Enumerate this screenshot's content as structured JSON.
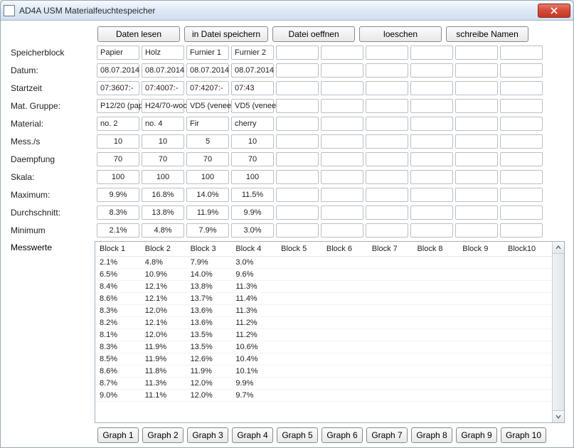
{
  "window": {
    "title": "AD4A USM Materialfeuchtespeicher"
  },
  "toolbar": {
    "read": "Daten lesen",
    "save_file": "in Datei speichern",
    "open_file": "Datei oeffnen",
    "delete": "loeschen",
    "write_names": "schreibe Namen"
  },
  "labels": {
    "speicherblock": "Speicherblock",
    "datum": "Datum:",
    "startzeit": "Startzeit",
    "mat_gruppe": "Mat. Gruppe:",
    "material": "Material:",
    "mess_s": "Mess./s",
    "daempfung": "Daempfung",
    "skala": "Skala:",
    "maximum": "Maximum:",
    "durchschnitt": "Durchschnitt:",
    "minimum": "Minimum",
    "messwerte": "Messwerte"
  },
  "columns": {
    "speicherblock": [
      "Papier",
      "Holz",
      "Furnier 1",
      "Furnier 2",
      "",
      "",
      "",
      "",
      "",
      ""
    ],
    "datum": [
      "08.07.2014",
      "08.07.2014",
      "08.07.2014",
      "08.07.2014",
      "",
      "",
      "",
      "",
      "",
      ""
    ],
    "startzeit": [
      "07:3607:-",
      "07:4007:-",
      "07:4207:-",
      "07:43",
      "",
      "",
      "",
      "",
      "",
      ""
    ],
    "mat_gruppe": [
      "P12/20 (pap",
      "H24/70-woo",
      "VD5 (veneer",
      "VD5 (veneer",
      "",
      "",
      "",
      "",
      "",
      ""
    ],
    "material": [
      "no. 2",
      "no. 4",
      "Fir",
      "cherry",
      "",
      "",
      "",
      "",
      "",
      ""
    ],
    "mess_s": [
      "10",
      "10",
      "5",
      "10",
      "",
      "",
      "",
      "",
      "",
      ""
    ],
    "daempfung": [
      "70",
      "70",
      "70",
      "70",
      "",
      "",
      "",
      "",
      "",
      ""
    ],
    "skala": [
      "100",
      "100",
      "100",
      "100",
      "",
      "",
      "",
      "",
      "",
      ""
    ],
    "maximum": [
      "9.9%",
      "16.8%",
      "14.0%",
      "11.5%",
      "",
      "",
      "",
      "",
      "",
      ""
    ],
    "durchschnitt": [
      "8.3%",
      "13.8%",
      "11.9%",
      "9.9%",
      "",
      "",
      "",
      "",
      "",
      ""
    ],
    "minimum": [
      "2.1%",
      "4.8%",
      "7.9%",
      "3.0%",
      "",
      "",
      "",
      "",
      "",
      ""
    ]
  },
  "messwerte": {
    "headers": [
      "Block 1",
      "Block 2",
      "Block 3",
      "Block 4",
      "Block 5",
      "Block 6",
      "Block 7",
      "Block 8",
      "Block 9",
      "Block10"
    ],
    "rows": [
      [
        "2.1%",
        "4.8%",
        "7.9%",
        "3.0%",
        "",
        "",
        "",
        "",
        "",
        ""
      ],
      [
        "6.5%",
        "10.9%",
        "14.0%",
        "9.6%",
        "",
        "",
        "",
        "",
        "",
        ""
      ],
      [
        "8.4%",
        "12.1%",
        "13.8%",
        "11.3%",
        "",
        "",
        "",
        "",
        "",
        ""
      ],
      [
        "8.6%",
        "12.1%",
        "13.7%",
        "11.4%",
        "",
        "",
        "",
        "",
        "",
        ""
      ],
      [
        "8.3%",
        "12.0%",
        "13.6%",
        "11.3%",
        "",
        "",
        "",
        "",
        "",
        ""
      ],
      [
        "8.2%",
        "12.1%",
        "13.6%",
        "11.2%",
        "",
        "",
        "",
        "",
        "",
        ""
      ],
      [
        "8.1%",
        "12.0%",
        "13.5%",
        "11.2%",
        "",
        "",
        "",
        "",
        "",
        ""
      ],
      [
        "8.3%",
        "11.9%",
        "13.5%",
        "10.6%",
        "",
        "",
        "",
        "",
        "",
        ""
      ],
      [
        "8.5%",
        "11.9%",
        "12.6%",
        "10.4%",
        "",
        "",
        "",
        "",
        "",
        ""
      ],
      [
        "8.6%",
        "11.8%",
        "11.9%",
        "10.1%",
        "",
        "",
        "",
        "",
        "",
        ""
      ],
      [
        "8.7%",
        "11.3%",
        "12.0%",
        "9.9%",
        "",
        "",
        "",
        "",
        "",
        ""
      ],
      [
        "9.0%",
        "11.1%",
        "12.0%",
        "9.7%",
        "",
        "",
        "",
        "",
        "",
        ""
      ]
    ]
  },
  "graph_buttons": [
    "Graph 1",
    "Graph 2",
    "Graph 3",
    "Graph 4",
    "Graph 5",
    "Graph 6",
    "Graph 7",
    "Graph 8",
    "Graph 9",
    "Graph 10"
  ],
  "centered_fields": [
    "mess_s",
    "daempfung",
    "skala",
    "maximum",
    "durchschnitt",
    "minimum"
  ],
  "row_order": [
    "speicherblock",
    "datum",
    "startzeit",
    "mat_gruppe",
    "material",
    "mess_s",
    "daempfung",
    "skala",
    "maximum",
    "durchschnitt",
    "minimum"
  ],
  "colors": {
    "titlebar_gradient_top": "#f6fafd",
    "titlebar_gradient_bottom": "#d0def0",
    "close_bg": "#d44a36",
    "cell_border": "#b8bfc6"
  }
}
